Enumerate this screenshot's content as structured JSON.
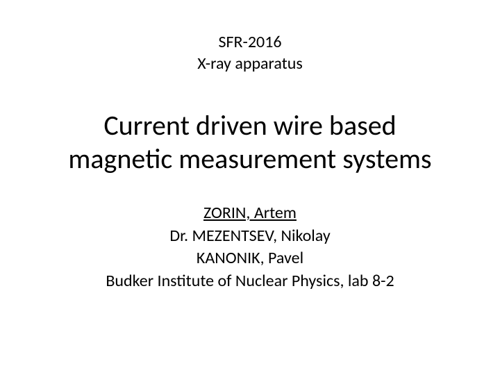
{
  "header": {
    "line1": "SFR-2016",
    "line2": "X-ray apparatus"
  },
  "title": {
    "line1": "Current driven wire based",
    "line2": "magnetic measurement systems"
  },
  "authors": {
    "primary": "ZORIN, Artem",
    "second": "Dr. MEZENTSEV, Nikolay",
    "third": "KANONIK, Pavel",
    "affiliation": "Budker Institute of Nuclear Physics, lab 8-2"
  },
  "style": {
    "background_color": "#ffffff",
    "text_color": "#000000",
    "header_fontsize": 24,
    "title_fontsize": 40,
    "author_fontsize": 24
  }
}
